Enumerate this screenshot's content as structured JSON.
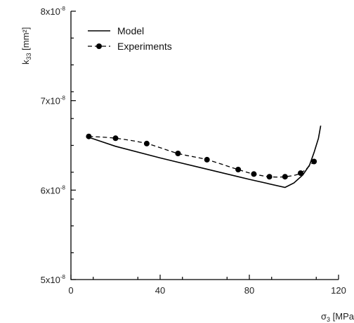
{
  "chart_data": {
    "type": "line",
    "xlabel": "σ3 [MPa]",
    "ylabel": "k33 [mm²]",
    "xlim": [
      0,
      120
    ],
    "ylim": [
      5e-08,
      8e-08
    ],
    "x_ticks": [
      0,
      40,
      80,
      120
    ],
    "x_tick_labels": [
      "0",
      "40",
      "80",
      "120"
    ],
    "y_ticks": [
      5e-08,
      6e-08,
      7e-08,
      8e-08
    ],
    "y_tick_labels": [
      "5x10",
      "6x10",
      "7x10",
      "8x10"
    ],
    "y_tick_exponent": "-8",
    "grid": false,
    "legend_position": "top-left",
    "series": [
      {
        "name": "Model",
        "style": "solid",
        "x": [
          8,
          20,
          40,
          60,
          80,
          96,
          100,
          104,
          107,
          109,
          111,
          112
        ],
        "y": [
          6.59e-08,
          6.49e-08,
          6.36e-08,
          6.24e-08,
          6.12e-08,
          6.03e-08,
          6.08e-08,
          6.17e-08,
          6.28e-08,
          6.42e-08,
          6.58e-08,
          6.72e-08
        ]
      },
      {
        "name": "Experiments",
        "style": "dashed-markers",
        "x": [
          8,
          20,
          34,
          48,
          61,
          75,
          82,
          89,
          96,
          103,
          109
        ],
        "y": [
          6.6e-08,
          6.58e-08,
          6.52e-08,
          6.41e-08,
          6.34e-08,
          6.23e-08,
          6.18e-08,
          6.15e-08,
          6.15e-08,
          6.19e-08,
          6.32e-08
        ]
      }
    ]
  }
}
